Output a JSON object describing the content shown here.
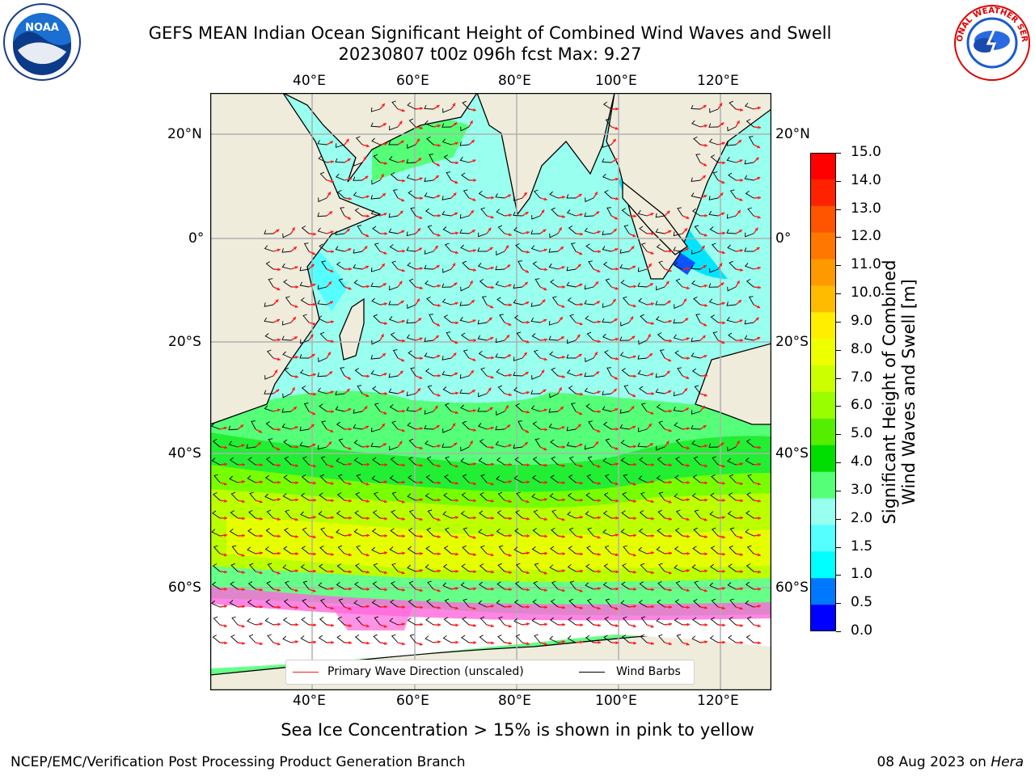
{
  "title": {
    "line1": "GEFS MEAN Indian Ocean Significant Height of Combined Wind Waves and Swell",
    "line2": "20230807 t00z 096h fcst   Max: 9.27"
  },
  "logos": {
    "left": {
      "name": "noaa-logo",
      "text": "NOAA"
    },
    "right": {
      "name": "nws-logo",
      "text": "NATIONAL WEATHER SERVICE"
    }
  },
  "axes": {
    "lon_labels": [
      "40°E",
      "60°E",
      "80°E",
      "100°E",
      "120°E"
    ],
    "lat_labels": [
      "20°N",
      "0°",
      "20°S",
      "40°S",
      "60°S"
    ]
  },
  "legend": {
    "primary_wave": "Primary Wave Direction (unscaled)",
    "wind_barbs": "Wind Barbs"
  },
  "colorbar": {
    "label_line1": "Significant Height of Combined",
    "label_line2": "Wind Waves and Swell [m]",
    "ticks": [
      "15.0",
      "14.0",
      "13.0",
      "12.0",
      "11.0",
      "10.0",
      "9.0",
      "8.0",
      "7.0",
      "6.0",
      "5.0",
      "4.0",
      "3.0",
      "2.0",
      "1.5",
      "1.0",
      "0.5",
      "0.0"
    ],
    "colors": [
      "#ff0000",
      "#ff2200",
      "#ff5500",
      "#ff7700",
      "#ff9900",
      "#ffbb00",
      "#ffee00",
      "#eeff00",
      "#ccff00",
      "#99ff00",
      "#55ee00",
      "#00dd00",
      "#55ff77",
      "#99ffee",
      "#55ffff",
      "#00ffff",
      "#0077ff",
      "#0000ff"
    ]
  },
  "map_colors": {
    "land": "#efecdc",
    "ice": "#ffffff",
    "grid": "#b0b0b0",
    "wave_arrow": "#ff1a1a",
    "barb": "#000000"
  },
  "caption": "Sea Ice Concentration > 15% is shown in pink to yellow",
  "footer": {
    "left": "NCEP/EMC/Verification Post Processing Product Generation Branch",
    "right_prefix": "08 Aug 2023 on ",
    "right_host": "Hera"
  }
}
